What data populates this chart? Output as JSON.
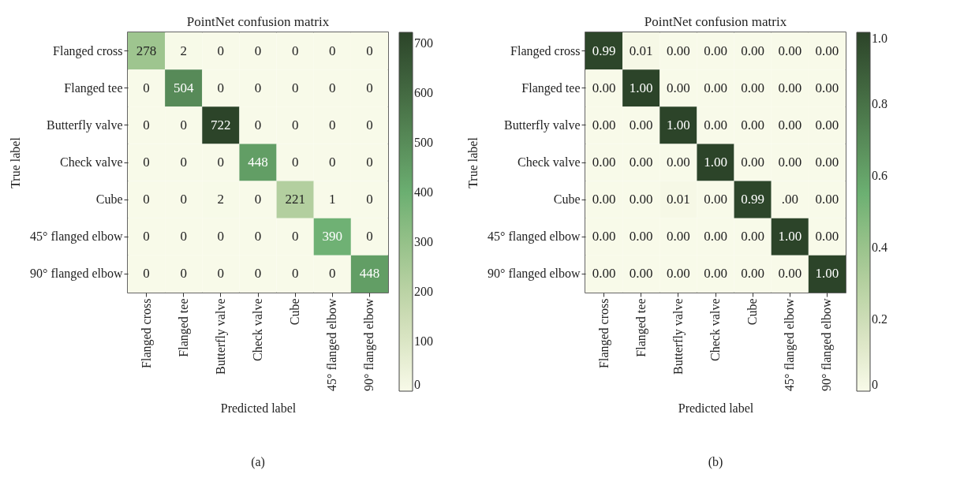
{
  "chart_data": [
    {
      "type": "heatmap",
      "title": "PointNet confusion matrix",
      "xlabel": "Predicted label",
      "ylabel": "True label",
      "categories": [
        "Flanged cross",
        "Flanged tee",
        "Butterfly valve",
        "Check valve",
        "Cube",
        "45° flanged elbow",
        "90° flanged elbow"
      ],
      "y_categories": [
        "Flanged cross",
        "Flanged tee",
        "Butterfly valve",
        "Check valve",
        "Cube",
        "45° flanged elbow",
        "90° flanged elbow"
      ],
      "cells": [
        [
          278,
          2,
          0,
          0,
          0,
          0,
          0
        ],
        [
          0,
          504,
          0,
          0,
          0,
          0,
          0
        ],
        [
          0,
          0,
          722,
          0,
          0,
          0,
          0
        ],
        [
          0,
          0,
          0,
          448,
          0,
          0,
          0
        ],
        [
          0,
          0,
          2,
          0,
          221,
          1,
          0
        ],
        [
          0,
          0,
          0,
          0,
          0,
          390,
          0
        ],
        [
          0,
          0,
          0,
          0,
          0,
          0,
          448
        ]
      ],
      "data_labels": true,
      "clim": [
        0,
        722
      ],
      "cticks": [
        0,
        100,
        200,
        300,
        400,
        500,
        600,
        700
      ],
      "annotations": [
        "(a)"
      ]
    },
    {
      "type": "heatmap",
      "title": "PointNet confusion matrix",
      "xlabel": "Predicted label",
      "ylabel": "True label",
      "categories": [
        "Flanged cross",
        "Flanged tee",
        "Butterfly valve",
        "Check valve",
        "Cube",
        "45° flanged elbow",
        "90° flanged elbow"
      ],
      "y_categories": [
        "Flanged cross",
        "Flanged tee",
        "Butterfly valve",
        "Check valve",
        "Cube",
        "45° flanged elbow",
        "90° flanged elbow"
      ],
      "cells": [
        [
          0.99,
          0.01,
          0,
          0,
          0,
          0,
          0
        ],
        [
          0,
          1,
          0,
          0,
          0,
          0,
          0
        ],
        [
          0,
          0,
          1,
          0,
          0,
          0,
          0
        ],
        [
          0,
          0,
          0,
          1,
          0,
          0,
          0
        ],
        [
          0,
          0,
          0.01,
          0,
          0.99,
          0,
          0
        ],
        [
          0,
          0,
          0,
          0,
          0,
          1,
          0
        ],
        [
          0,
          0,
          0,
          0,
          0,
          0,
          1
        ]
      ],
      "cell_labels": [
        [
          "0.99",
          "0.01",
          "0.00",
          "0.00",
          "0.00",
          "0.00",
          "0.00"
        ],
        [
          "0.00",
          "1.00",
          "0.00",
          "0.00",
          "0.00",
          "0.00",
          "0.00"
        ],
        [
          "0.00",
          "0.00",
          "1.00",
          "0.00",
          "0.00",
          "0.00",
          "0.00"
        ],
        [
          "0.00",
          "0.00",
          "0.00",
          "1.00",
          "0.00",
          "0.00",
          "0.00"
        ],
        [
          "0.00",
          "0.00",
          "0.01",
          "0.00",
          "0.99",
          ".00",
          "0.00"
        ],
        [
          "0.00",
          "0.00",
          "0.00",
          "0.00",
          "0.00",
          "1.00",
          "0.00"
        ],
        [
          "0.00",
          "0.00",
          "0.00",
          "0.00",
          "0.00",
          "0.00",
          "1.00"
        ]
      ],
      "clim": [
        0,
        1
      ],
      "cticks": [
        0,
        0.2,
        0.4,
        0.6,
        0.8,
        {
          "value": 1,
          "label": "1.0"
        }
      ],
      "annotations": [
        "(b)"
      ]
    }
  ]
}
